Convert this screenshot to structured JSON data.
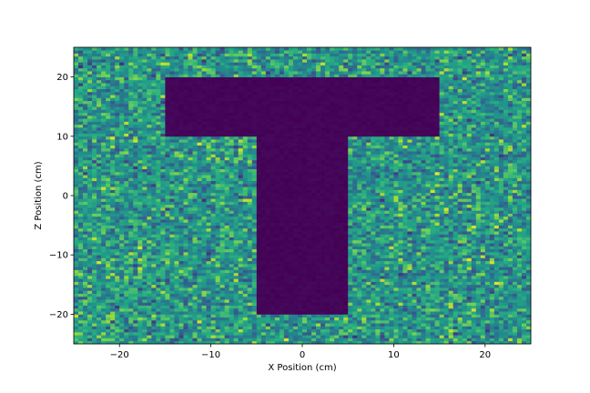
{
  "chart_data": {
    "type": "heatmap",
    "title": "",
    "xlabel": "X Position (cm)",
    "ylabel": "Z Position (cm)",
    "xlim": [
      -25,
      25
    ],
    "ylim": [
      -25,
      25
    ],
    "xticks": [
      -20,
      -10,
      0,
      10,
      20
    ],
    "yticks": [
      -20,
      -10,
      0,
      10,
      20
    ],
    "xtick_labels": [
      "−20",
      "−10",
      "0",
      "10",
      "20"
    ],
    "ytick_labels": [
      "−20",
      "−10",
      "0",
      "10",
      "20"
    ],
    "grid": false,
    "colormap": "viridis",
    "bins": [
      100,
      100
    ],
    "low_count_region": {
      "shape": "T",
      "top_bar": {
        "x": [
          -15,
          15
        ],
        "z": [
          10,
          20
        ]
      },
      "stem": {
        "x": [
          -5,
          5
        ],
        "z": [
          -20,
          10
        ]
      }
    },
    "region_value": 0,
    "background_value_range": [
      0.15,
      1.0
    ]
  },
  "colors": {
    "viridis_low": "#440154",
    "viridis_mid": "#21918c",
    "viridis_high": "#fde725"
  }
}
